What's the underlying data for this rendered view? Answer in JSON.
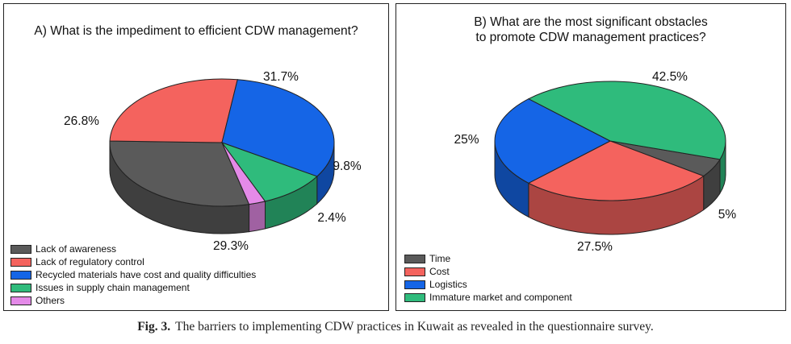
{
  "chart_data": [
    {
      "type": "pie",
      "title": "A) What is the impediment to efficient CDW management?",
      "categories": [
        "Lack of awareness",
        "Lack of regulatory control",
        "Recycled materials have cost and quality difficulties",
        "Issues in supply chain management",
        "Others"
      ],
      "values": [
        29.3,
        26.8,
        31.7,
        9.8,
        2.4
      ],
      "labels": [
        "29.3%",
        "26.8%",
        "31.7%",
        "9.8%",
        "2.4%"
      ],
      "colors": [
        "#5a5a5a",
        "#f4635e",
        "#1565e6",
        "#2fbb7c",
        "#e48ae8"
      ],
      "legend_position": "bottom-left"
    },
    {
      "type": "pie",
      "title": [
        "B) What are the most significant obstacles",
        "to promote CDW management practices?"
      ],
      "categories": [
        "Time",
        "Cost",
        "Logistics",
        "Immature market and component"
      ],
      "values": [
        5,
        27.5,
        25,
        42.5
      ],
      "labels": [
        "5%",
        "27.5%",
        "25%",
        "42.5%"
      ],
      "colors": [
        "#5a5a5a",
        "#f4635e",
        "#1565e6",
        "#2fbb7c"
      ],
      "legend_position": "bottom-left"
    }
  ],
  "caption": {
    "label": "Fig. 3.",
    "text": "The barriers to implementing CDW practices in Kuwait as revealed in the questionnaire survey."
  }
}
